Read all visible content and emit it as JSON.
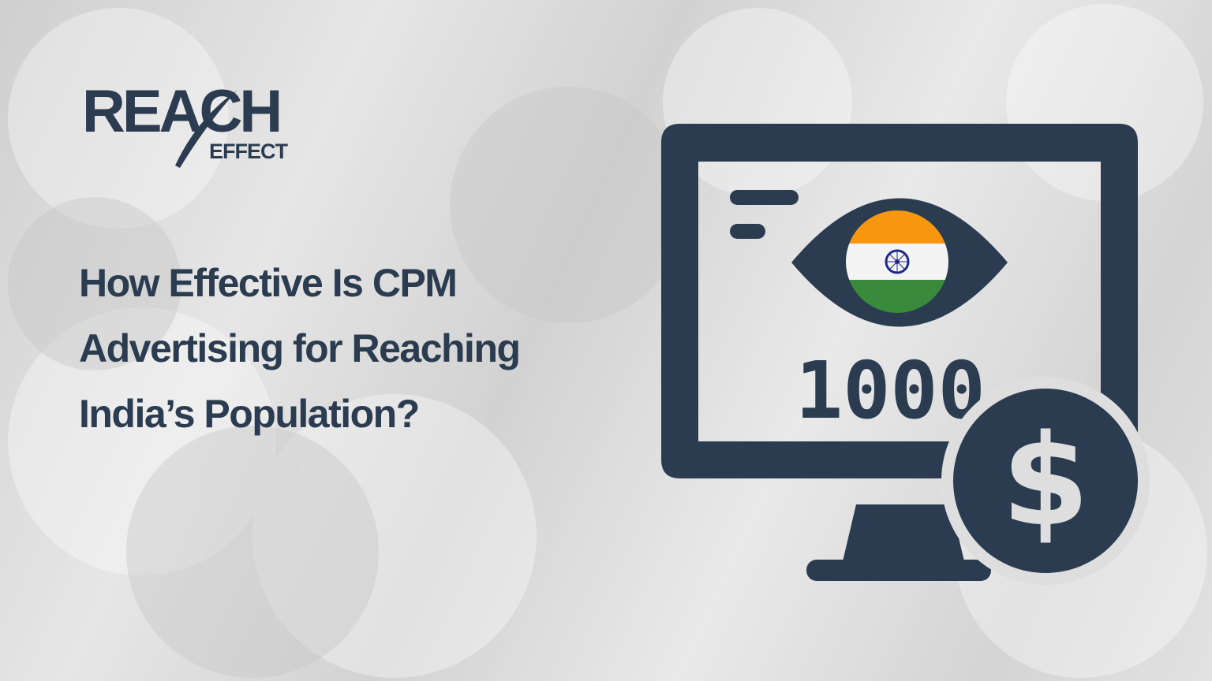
{
  "logo": {
    "line1": "REACH",
    "line2": "EFFECT"
  },
  "headline": {
    "lines": [
      "How Effective Is CPM",
      "Advertising for Reaching",
      "India’s Population?"
    ]
  },
  "illustration": {
    "counter_text": "1000",
    "currency_symbol": "$",
    "icons": [
      "monitor-icon",
      "eye-icon",
      "india-flag-icon",
      "dollar-coin-icon"
    ]
  },
  "colors": {
    "primary": "#2b3c50",
    "saffron": "#f7960f",
    "white": "#f4f4f4",
    "green": "#3a8a3c",
    "chakra": "#1d2a8a",
    "background": "#dcdcdc"
  }
}
